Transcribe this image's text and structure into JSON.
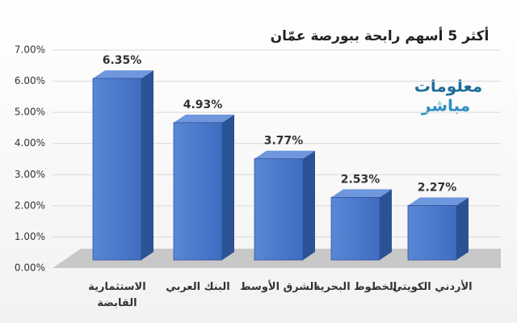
{
  "chart_data": {
    "type": "bar3d",
    "title": "أكثر 5 أسهم رابحة ببورصة عمّان",
    "categories": [
      "الاستثمارية القابضة",
      "البنك العربي",
      "الشرق الأوسط",
      "الخطوط البحرية",
      "الأردني الكويتي"
    ],
    "values": [
      6.35,
      4.93,
      3.77,
      2.53,
      2.27
    ],
    "value_labels": [
      "6.35%",
      "4.93%",
      "3.77%",
      "2.53%",
      "2.27%"
    ],
    "color": "#4472c4",
    "ylim": [
      0,
      7
    ],
    "yticks": [
      {
        "value": 0,
        "label": "0.00%"
      },
      {
        "value": 1,
        "label": "1.00%"
      },
      {
        "value": 2,
        "label": "2.00%"
      },
      {
        "value": 3,
        "label": "3.00%"
      },
      {
        "value": 4,
        "label": "4.00%"
      },
      {
        "value": 5,
        "label": "5.00%"
      },
      {
        "value": 6,
        "label": "6.00%"
      },
      {
        "value": 7,
        "label": "7.00%"
      }
    ],
    "grid": true
  },
  "logo": {
    "line1": "معلومات",
    "line2": "مباشر"
  }
}
